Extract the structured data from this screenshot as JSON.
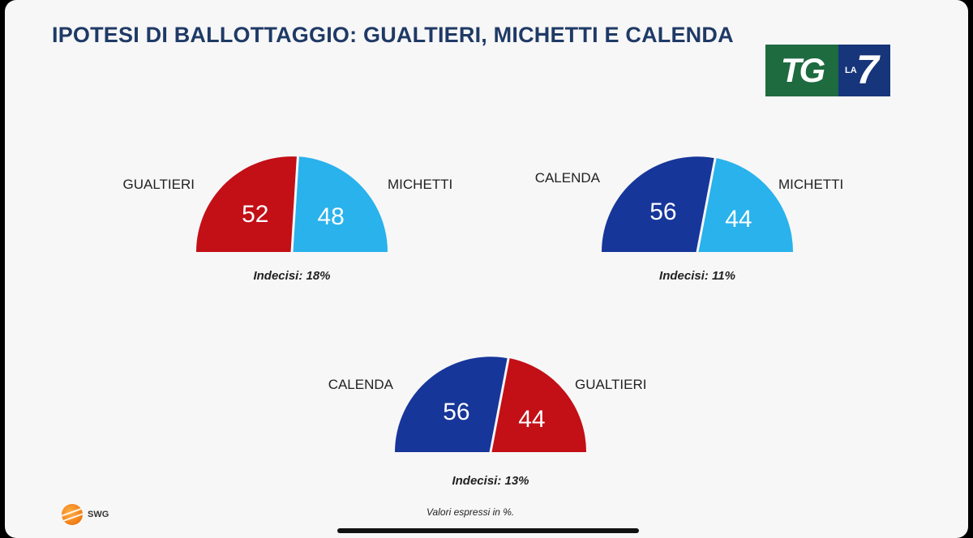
{
  "title": "IPOTESI DI BALLOTTAGGIO: GUALTIERI, MICHETTI E CALENDA",
  "logo": {
    "tg": "TG",
    "la": "LA",
    "seven": "7"
  },
  "colors": {
    "Gualtieri": "#c30f16",
    "Michetti": "#29b2ec",
    "Calenda": "#17369a"
  },
  "chart_data": [
    {
      "type": "pie",
      "shape": "semicircle",
      "categories": [
        "GUALTIERI",
        "MICHETTI"
      ],
      "values": [
        52,
        48
      ],
      "value_labels": [
        "52",
        "48"
      ],
      "colors": [
        "#c30f16",
        "#29b2ec"
      ],
      "undecided": "Indecisi: 18%"
    },
    {
      "type": "pie",
      "shape": "semicircle",
      "categories": [
        "CALENDA",
        "MICHETTI"
      ],
      "values": [
        56,
        44
      ],
      "value_labels": [
        "56",
        "44"
      ],
      "colors": [
        "#17369a",
        "#29b2ec"
      ],
      "undecided": "Indecisi: 11%"
    },
    {
      "type": "pie",
      "shape": "semicircle",
      "categories": [
        "CALENDA",
        "GUALTIERI"
      ],
      "values": [
        56,
        44
      ],
      "value_labels": [
        "56",
        "44"
      ],
      "colors": [
        "#17369a",
        "#c30f16"
      ],
      "undecided": "Indecisi: 13%"
    }
  ],
  "source": {
    "name": "SWG"
  },
  "footnote": "Valori espressi in %."
}
